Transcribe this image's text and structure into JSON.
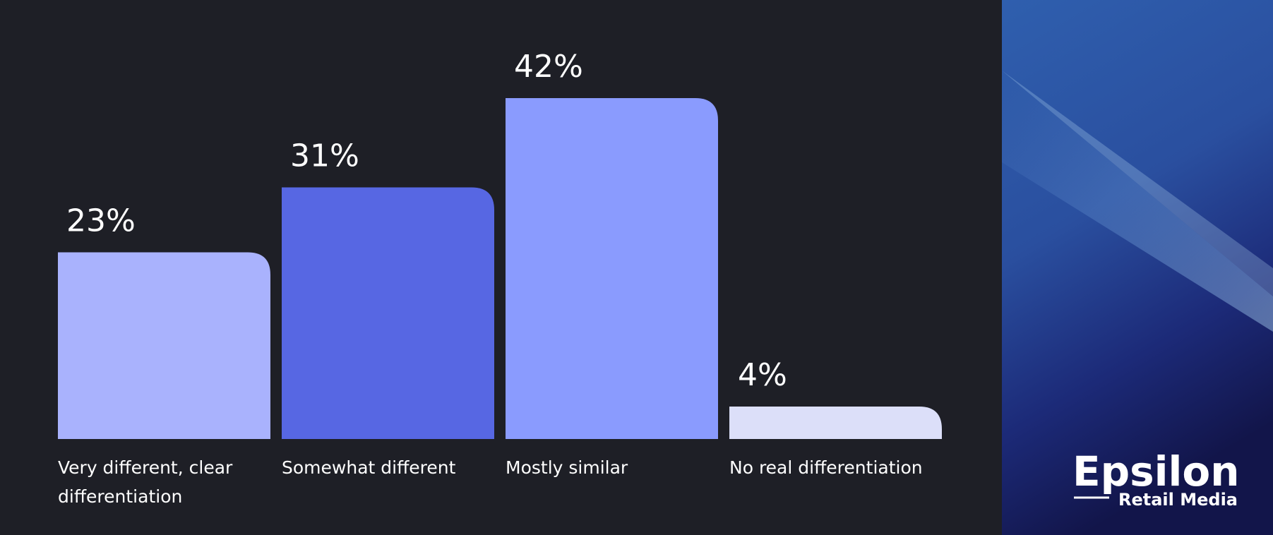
{
  "chart_data": {
    "type": "bar",
    "categories": [
      "Very different, clear differentiation",
      "Somewhat different",
      "Mostly similar",
      "No real differentiation"
    ],
    "values": [
      23,
      31,
      42,
      4
    ],
    "value_labels": [
      "23%",
      "31%",
      "42%",
      "4%"
    ],
    "colors": [
      "#a9b2fd",
      "#5767e3",
      "#8a9bfe",
      "#dcdff9"
    ]
  },
  "logo": {
    "name": "Epsilon",
    "tagline": "Retail Media"
  }
}
